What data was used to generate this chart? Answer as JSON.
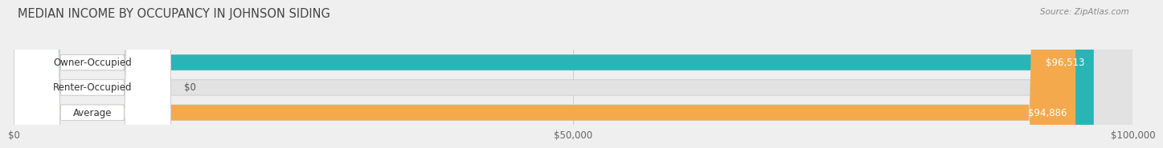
{
  "title": "MEDIAN INCOME BY OCCUPANCY IN JOHNSON SIDING",
  "source": "Source: ZipAtlas.com",
  "categories": [
    "Owner-Occupied",
    "Renter-Occupied",
    "Average"
  ],
  "values": [
    96513,
    0,
    94886
  ],
  "bar_colors": [
    "#29b5b5",
    "#c3a3d0",
    "#f5a94d"
  ],
  "value_labels": [
    "$96,513",
    "$0",
    "$94,886"
  ],
  "xlim": [
    0,
    100000
  ],
  "xtick_values": [
    0,
    50000,
    100000
  ],
  "xtick_labels": [
    "$0",
    "$50,000",
    "$100,000"
  ],
  "background_color": "#efefef",
  "bar_bg_color": "#e2e2e2",
  "label_bg_color": "#ffffff",
  "title_fontsize": 10.5,
  "bar_height": 0.62,
  "figsize": [
    14.06,
    1.96
  ]
}
